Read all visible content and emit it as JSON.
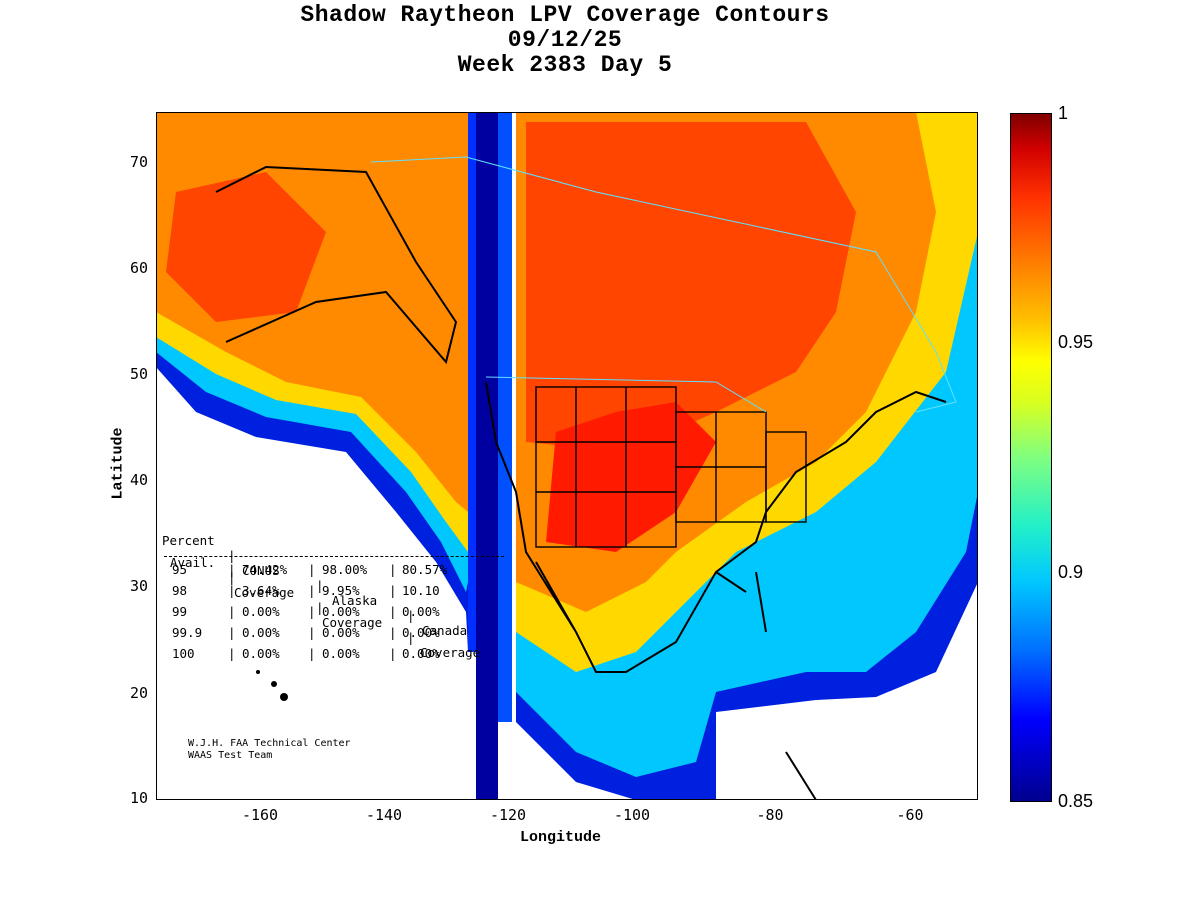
{
  "title": {
    "line1": "Shadow Raytheon LPV Coverage Contours",
    "line2": "09/12/25",
    "line3": "Week 2383 Day 5"
  },
  "axes": {
    "xlabel": "Longitude",
    "ylabel": "Latitude",
    "xticks": [
      "-160",
      "-140",
      "-120",
      "-100",
      "-80",
      "-60"
    ],
    "yticks": [
      "70",
      "60",
      "50",
      "40",
      "30",
      "20",
      "10"
    ]
  },
  "colorbar": {
    "ticks": [
      "1",
      "0.95",
      "0.9",
      "0.85"
    ],
    "min": 0.85,
    "max": 1.0
  },
  "stats_table": {
    "headers": {
      "col1_line1": "Percent",
      "col1_line2": "Avail.",
      "col2_line1": "CONUS",
      "col2_line2": "Coverage",
      "col3_line1": "Alaska",
      "col3_line2": "Coverage",
      "col4_line1": "Canada",
      "col4_line2": "Coverage"
    },
    "rows": [
      {
        "percent": "95",
        "conus": "74.42%",
        "alaska": "98.00%",
        "canada": "80.57%"
      },
      {
        "percent": "98",
        "conus": "3.64%",
        "alaska": "9.95%",
        "canada": "10.10"
      },
      {
        "percent": "99",
        "conus": "0.00%",
        "alaska": "0.00%",
        "canada": "0.00%"
      },
      {
        "percent": "99.9",
        "conus": "0.00%",
        "alaska": "0.00%",
        "canada": "0.00%"
      },
      {
        "percent": "100",
        "conus": "0.00%",
        "alaska": "0.00%",
        "canada": "0.00%"
      }
    ]
  },
  "credit": {
    "line1": "W.J.H. FAA Technical Center",
    "line2": "WAAS Test Team"
  },
  "colors": {
    "deep_red": "#d00000",
    "red_orange": "#ff3000",
    "orange": "#ff8000",
    "yellow": "#ffff00",
    "cyan": "#00c8ff",
    "blue": "#0000ff",
    "navy": "#00008f"
  }
}
